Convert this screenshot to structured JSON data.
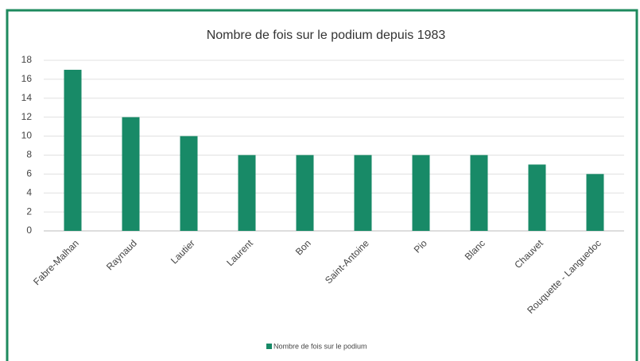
{
  "chart_data": {
    "type": "bar",
    "title": "Nombre de fois sur le podium depuis 1983",
    "categories": [
      "Fabre-Malhan",
      "Raynaud",
      "Lautier",
      "Laurent",
      "Bon",
      "Saint-Antoine",
      "Pio",
      "Blanc",
      "Chauvet",
      "Rouquette - Languedoc"
    ],
    "series": [
      {
        "name": "Nombre de fois sur le podium",
        "color": "#188a67",
        "values": [
          17,
          12,
          10,
          8,
          8,
          8,
          8,
          8,
          7,
          6
        ]
      }
    ],
    "ylim": [
      0,
      18
    ],
    "yticks": [
      0,
      2,
      4,
      6,
      8,
      10,
      12,
      14,
      16,
      18
    ],
    "grid": true,
    "legend": "bottom"
  }
}
